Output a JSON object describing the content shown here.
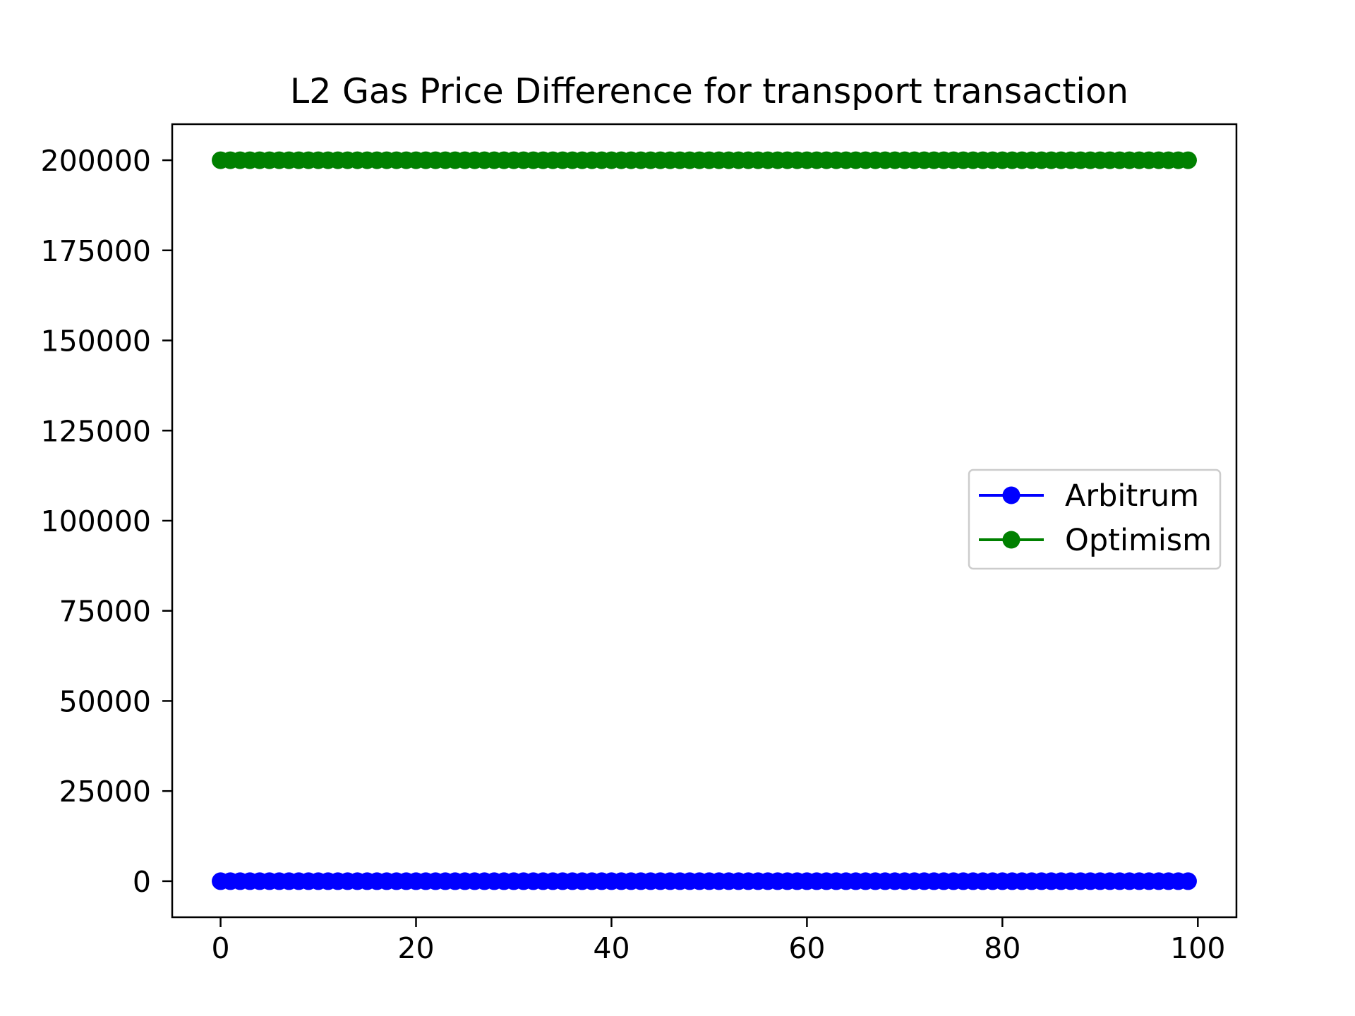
{
  "chart_data": {
    "type": "line",
    "title": "L2 Gas Price Difference for transport transaction",
    "xlabel": "",
    "ylabel": "",
    "x": [
      0,
      1,
      2,
      3,
      4,
      5,
      6,
      7,
      8,
      9,
      10,
      11,
      12,
      13,
      14,
      15,
      16,
      17,
      18,
      19,
      20,
      21,
      22,
      23,
      24,
      25,
      26,
      27,
      28,
      29,
      30,
      31,
      32,
      33,
      34,
      35,
      36,
      37,
      38,
      39,
      40,
      41,
      42,
      43,
      44,
      45,
      46,
      47,
      48,
      49,
      50,
      51,
      52,
      53,
      54,
      55,
      56,
      57,
      58,
      59,
      60,
      61,
      62,
      63,
      64,
      65,
      66,
      67,
      68,
      69,
      70,
      71,
      72,
      73,
      74,
      75,
      76,
      77,
      78,
      79,
      80,
      81,
      82,
      83,
      84,
      85,
      86,
      87,
      88,
      89,
      90,
      91,
      92,
      93,
      94,
      95,
      96,
      97,
      98,
      99
    ],
    "series": [
      {
        "name": "Arbitrum",
        "color": "#0000ff",
        "marker": "circle",
        "constant_value": 0
      },
      {
        "name": "Optimism",
        "color": "#008000",
        "marker": "circle",
        "constant_value": 200000
      }
    ],
    "xlim": [
      -4.95,
      103.95
    ],
    "ylim": [
      -10000,
      210000
    ],
    "xticks": [
      0,
      20,
      40,
      60,
      80,
      100
    ],
    "yticks": [
      0,
      25000,
      50000,
      75000,
      100000,
      125000,
      150000,
      175000,
      200000
    ],
    "grid": false,
    "legend_position": "center-right"
  }
}
